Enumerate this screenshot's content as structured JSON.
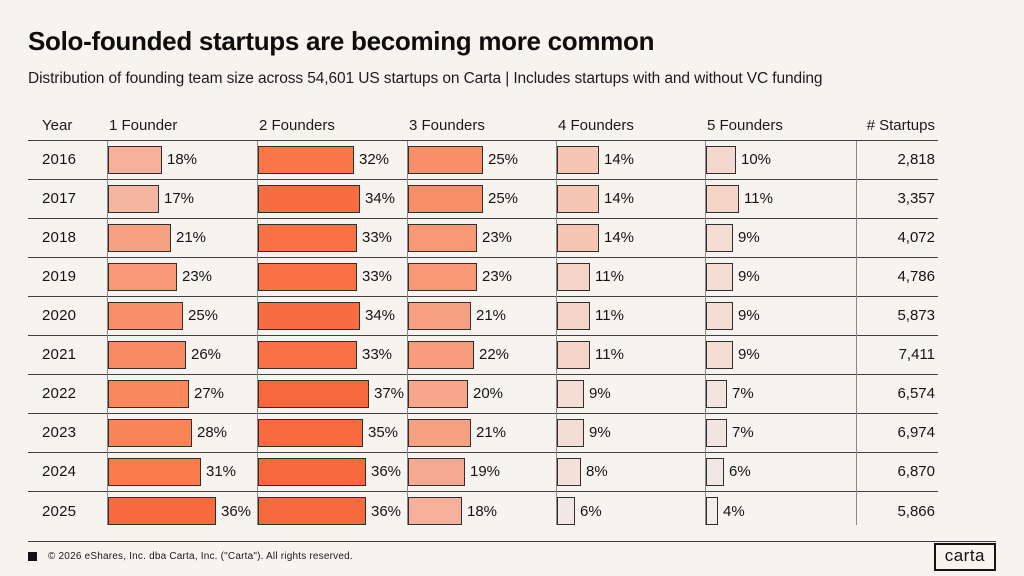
{
  "header": {
    "title": "Solo-founded startups are becoming more common",
    "subtitle": "Distribution of founding team size across 54,601 US startups on Carta | Includes startups with and without VC funding"
  },
  "table": {
    "columns": [
      "Year",
      "1 Founder",
      "2 Founders",
      "3 Founders",
      "4 Founders",
      "5 Founders",
      "# Startups"
    ]
  },
  "chart_data": {
    "type": "bar",
    "title": "Solo-founded startups are becoming more common",
    "subtitle": "Distribution of founding team size across 54,601 US startups on Carta | Includes startups with and without VC funding",
    "unit": "%",
    "legend": false,
    "xlim_percent": [
      0,
      49
    ],
    "categories": [
      "2016",
      "2017",
      "2018",
      "2019",
      "2020",
      "2021",
      "2022",
      "2023",
      "2024",
      "2025"
    ],
    "series": [
      {
        "name": "1 Founder",
        "values": [
          18,
          17,
          21,
          23,
          25,
          26,
          27,
          28,
          31,
          36
        ]
      },
      {
        "name": "2 Founders",
        "values": [
          32,
          34,
          33,
          33,
          34,
          33,
          37,
          35,
          36,
          36
        ]
      },
      {
        "name": "3 Founders",
        "values": [
          25,
          25,
          23,
          23,
          21,
          22,
          20,
          21,
          19,
          18
        ]
      },
      {
        "name": "4 Founders",
        "values": [
          14,
          14,
          14,
          11,
          11,
          11,
          9,
          9,
          8,
          6
        ]
      },
      {
        "name": "5 Founders",
        "values": [
          10,
          11,
          9,
          9,
          9,
          9,
          7,
          7,
          6,
          4
        ]
      }
    ],
    "startups": [
      "2,818",
      "3,357",
      "4,072",
      "4,786",
      "5,873",
      "7,411",
      "6,574",
      "6,974",
      "6,870",
      "5,866"
    ]
  },
  "colors": {
    "background": "#F7F4F0",
    "text": "#141414",
    "grid_horizontal": "#3F3F3F",
    "grid_vertical": "#8A8A8A",
    "bar_border": "#2F2F2F",
    "scale_stops": [
      [
        4,
        "#F0EEED"
      ],
      [
        9,
        "#F3DDD4"
      ],
      [
        14,
        "#F6C6B4"
      ],
      [
        18,
        "#F5AF9A"
      ],
      [
        22,
        "#F89C7B"
      ],
      [
        26,
        "#F98B62"
      ],
      [
        31,
        "#FA7A49"
      ],
      [
        34,
        "#F96C42"
      ],
      [
        37,
        "#F9673C"
      ]
    ]
  },
  "footer": {
    "copyright": "© 2026 eShares, Inc. dba Carta, Inc. (\"Carta\"). All rights reserved.",
    "logo": "carta"
  }
}
